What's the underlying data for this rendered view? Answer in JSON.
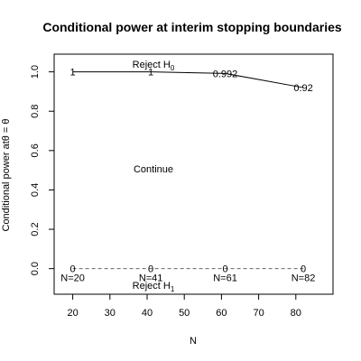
{
  "chart_data": {
    "type": "line",
    "title": "Conditional power at interim stopping boundaries",
    "xlabel": "N",
    "ylabel": "Conditional power atθ = θ",
    "xlim": [
      15,
      90
    ],
    "ylim": [
      -0.13,
      1.09
    ],
    "xticks": [
      20,
      30,
      40,
      50,
      60,
      70,
      80
    ],
    "yticks": [
      0.0,
      0.2,
      0.4,
      0.6,
      0.8,
      1.0
    ],
    "xtick_labels": [
      "20",
      "30",
      "40",
      "50",
      "60",
      "70",
      "80"
    ],
    "ytick_labels": [
      "0.0",
      "0.2",
      "0.4",
      "0.6",
      "0.8",
      "1.0"
    ],
    "grid": false,
    "series": [
      {
        "line_style": "solid",
        "color": "#000000",
        "x": [
          20,
          41,
          61,
          82
        ],
        "y": [
          1.0,
          1.0,
          0.992,
          0.92
        ],
        "point_labels": [
          "1",
          "1",
          "0.992",
          "0.92"
        ]
      },
      {
        "line_style": "dashed",
        "color": "#666666",
        "x": [
          20,
          41,
          61,
          82
        ],
        "y": [
          0,
          0,
          0,
          0
        ],
        "point_labels": [
          "0",
          "0",
          "0",
          "0"
        ]
      }
    ],
    "n_labels": [
      "N=20",
      "N=41",
      "N=61",
      "N=82"
    ],
    "annotations": {
      "reject_h0": "Reject H",
      "reject_h0_sub": "0",
      "reject_h1": "Reject H",
      "reject_h1_sub": "1",
      "continue": "Continue"
    }
  }
}
